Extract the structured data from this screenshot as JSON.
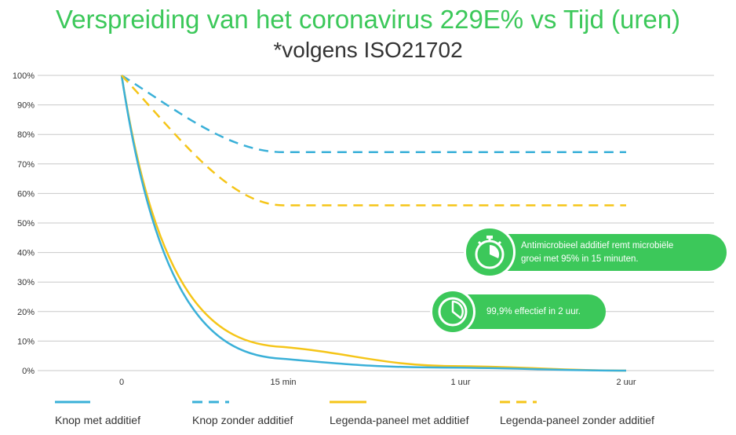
{
  "chart_data": {
    "type": "line",
    "title": "Verspreiding van het coronavirus 229E% vs Tijd (uren)",
    "subtitle": "*volgens ISO21702",
    "x_tick_labels": [
      "0",
      "15 min",
      "1 uur",
      "2 uur"
    ],
    "y_tick_labels": [
      "0%",
      "10%",
      "20%",
      "30%",
      "40%",
      "50%",
      "60%",
      "70%",
      "80%",
      "90%",
      "100%"
    ],
    "ylim": [
      0,
      100
    ],
    "grid": true,
    "legend_position": "bottom",
    "series": [
      {
        "name": "Knop met additief",
        "color": "#3ab0d8",
        "style": "solid",
        "x": [
          "0",
          "15 min",
          "1 uur",
          "2 uur"
        ],
        "values": [
          100,
          4,
          1,
          0
        ]
      },
      {
        "name": "Knop zonder additief",
        "color": "#3ab0d8",
        "style": "dashed",
        "x": [
          "0",
          "15 min",
          "1 uur",
          "2 uur"
        ],
        "values": [
          100,
          74,
          74,
          74
        ]
      },
      {
        "name": "Legenda-paneel met additief",
        "color": "#f5c518",
        "style": "solid",
        "x": [
          "0",
          "15 min",
          "1 uur",
          "2 uur"
        ],
        "values": [
          100,
          8,
          1.5,
          0
        ]
      },
      {
        "name": "Legenda-paneel zonder additief",
        "color": "#f5c518",
        "style": "dashed",
        "x": [
          "0",
          "15 min",
          "1 uur",
          "2 uur"
        ],
        "values": [
          100,
          56,
          56,
          56
        ]
      }
    ],
    "annotations": [
      {
        "icon": "stopwatch-icon",
        "text_line1": "Antimicrobieel additief remt microbiële",
        "text_line2": "groei met 95% in 15 minuten."
      },
      {
        "icon": "clock-icon",
        "text": "99,9% effectief in 2 uur."
      }
    ]
  },
  "colors": {
    "accent": "#3cc85a",
    "grid": "#c8c8c8",
    "axis_text": "#333333"
  }
}
